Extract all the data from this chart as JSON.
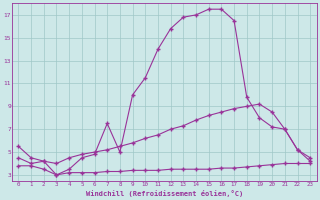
{
  "xlabel": "Windchill (Refroidissement éolien,°C)",
  "background_color": "#cde8e8",
  "grid_color": "#a0c8c8",
  "line_color": "#993399",
  "xlim": [
    -0.5,
    23.5
  ],
  "ylim": [
    2.5,
    18
  ],
  "yticks": [
    3,
    5,
    7,
    9,
    11,
    13,
    15,
    17
  ],
  "xticks": [
    0,
    1,
    2,
    3,
    4,
    5,
    6,
    7,
    8,
    9,
    10,
    11,
    12,
    13,
    14,
    15,
    16,
    17,
    18,
    19,
    20,
    21,
    22,
    23
  ],
  "line1_x": [
    0,
    1,
    2,
    3,
    4,
    5,
    6,
    7,
    8,
    9,
    10,
    11,
    12,
    13,
    14,
    15,
    16,
    17,
    18,
    19,
    20,
    21,
    22,
    23
  ],
  "line1_y": [
    5.5,
    4.5,
    4.2,
    3.0,
    3.5,
    4.5,
    4.8,
    7.5,
    5.0,
    10.0,
    11.5,
    14.0,
    15.8,
    16.8,
    17.0,
    17.5,
    17.5,
    16.5,
    9.8,
    8.0,
    7.2,
    7.0,
    5.2,
    4.5
  ],
  "line2_x": [
    0,
    1,
    2,
    3,
    4,
    5,
    6,
    7,
    8,
    9,
    10,
    11,
    12,
    13,
    14,
    15,
    16,
    17,
    18,
    19,
    20,
    21,
    22,
    23
  ],
  "line2_y": [
    4.5,
    4.0,
    4.2,
    4.0,
    4.5,
    4.8,
    5.0,
    5.2,
    5.5,
    5.8,
    6.2,
    6.5,
    7.0,
    7.3,
    7.8,
    8.2,
    8.5,
    8.8,
    9.0,
    9.2,
    8.5,
    7.0,
    5.2,
    4.2
  ],
  "line3_x": [
    0,
    1,
    2,
    3,
    4,
    5,
    6,
    7,
    8,
    9,
    10,
    11,
    12,
    13,
    14,
    15,
    16,
    17,
    18,
    19,
    20,
    21,
    22,
    23
  ],
  "line3_y": [
    3.8,
    3.8,
    3.5,
    3.0,
    3.2,
    3.2,
    3.2,
    3.3,
    3.3,
    3.4,
    3.4,
    3.4,
    3.5,
    3.5,
    3.5,
    3.5,
    3.6,
    3.6,
    3.7,
    3.8,
    3.9,
    4.0,
    4.0,
    4.0
  ]
}
